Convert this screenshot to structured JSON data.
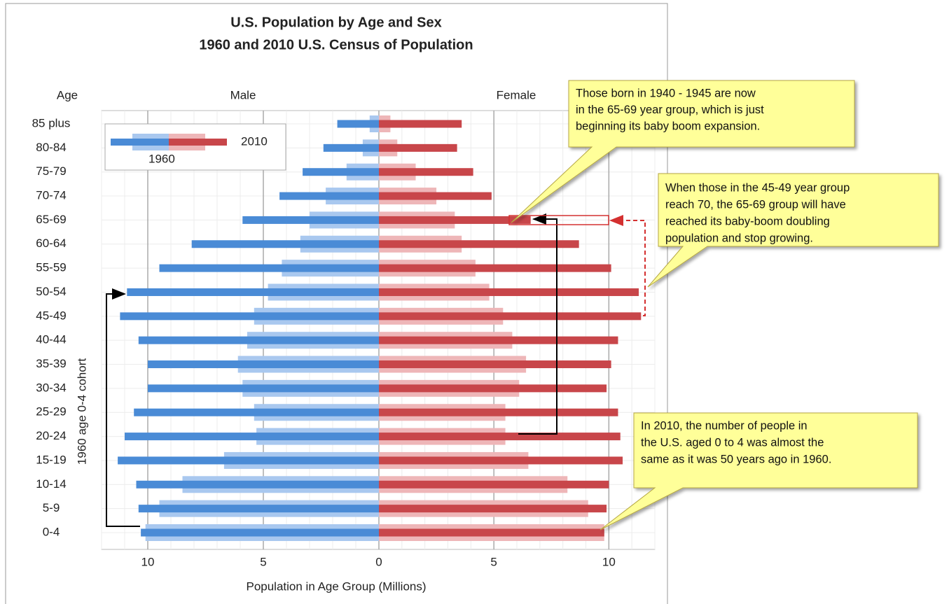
{
  "chart_data": {
    "type": "population_pyramid",
    "title": "U.S. Population by Age and Sex",
    "subtitle": "1960 and 2010 U.S. Census of Population",
    "y_axis_label": "Age",
    "x_axis_label": "Population in Age Group (Millions)",
    "male_label": "Male",
    "female_label": "Female",
    "categories": [
      "85 plus",
      "80-84",
      "75-79",
      "70-74",
      "65-69",
      "60-64",
      "55-59",
      "50-54",
      "45-49",
      "40-44",
      "35-39",
      "30-34",
      "25-29",
      "20-24",
      "15-19",
      "10-14",
      "5-9",
      "0-4"
    ],
    "series": [
      {
        "name": "2010",
        "male_color": "#4a8bd6",
        "female_color": "#c8464a",
        "male": [
          1.8,
          2.4,
          3.3,
          4.3,
          5.9,
          8.1,
          9.5,
          10.9,
          11.2,
          10.4,
          10.0,
          10.0,
          10.6,
          11.0,
          11.3,
          10.5,
          10.4,
          10.3
        ],
        "female": [
          3.6,
          3.4,
          4.1,
          4.9,
          6.6,
          8.7,
          10.1,
          11.3,
          11.4,
          10.4,
          10.1,
          9.9,
          10.4,
          10.5,
          10.6,
          10.0,
          9.9,
          9.8
        ]
      },
      {
        "name": "1960",
        "male_color": "#a9c8ef",
        "female_color": "#eeb6b8",
        "male": [
          0.4,
          0.7,
          1.4,
          2.3,
          3.0,
          3.4,
          4.2,
          4.8,
          5.4,
          5.7,
          6.1,
          5.9,
          5.4,
          5.3,
          6.7,
          8.5,
          9.5,
          10.1
        ],
        "female": [
          0.5,
          0.8,
          1.6,
          2.5,
          3.3,
          3.6,
          4.2,
          4.8,
          5.4,
          5.8,
          6.4,
          6.1,
          5.5,
          5.5,
          6.5,
          8.2,
          9.1,
          9.8
        ]
      }
    ],
    "male_xlim": [
      0,
      12
    ],
    "female_xlim": [
      0,
      12
    ],
    "male_xticks": [
      0,
      5,
      10
    ],
    "female_xticks": [
      5,
      10
    ],
    "minor_grid_step": 1,
    "grid": true,
    "cohort_label": "1960 age 0-4 cohort",
    "annotations": [
      [
        "Those born in 1940 - 1945 are now",
        "in the 65-69 year group, which is just",
        "beginning its baby boom expansion."
      ],
      [
        "When those in the 45-49 year group",
        "reach 70, the 65-69 group will have",
        "reached its baby-boom doubling",
        "population and stop growing."
      ],
      [
        "In 2010, the number of people in",
        "the U.S. aged 0 to 4 was almost the",
        "same as it was 50 years ago in 1960."
      ]
    ]
  }
}
